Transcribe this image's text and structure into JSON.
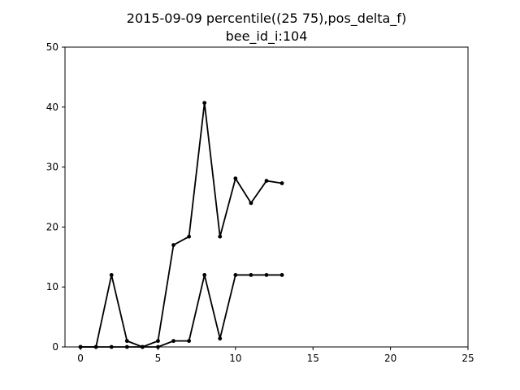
{
  "chart_data": {
    "type": "line",
    "title": "2015-09-09 percentile((25 75),pos_delta_f)",
    "subtitle": "bee_id_i:104",
    "xlabel": "",
    "ylabel": "",
    "xlim": [
      -1,
      25
    ],
    "ylim": [
      0,
      50
    ],
    "xticks": [
      0,
      5,
      10,
      15,
      20,
      25
    ],
    "yticks": [
      0,
      10,
      20,
      30,
      40,
      50
    ],
    "grid": false,
    "legend": false,
    "line_color": "#000000",
    "series": [
      {
        "x": [
          0,
          1,
          2,
          3,
          4,
          5,
          6,
          7,
          8,
          9,
          10,
          11,
          12,
          13
        ],
        "values": [
          0,
          0,
          12,
          1,
          0,
          1,
          17,
          18.4,
          40.7,
          18.4,
          28.1,
          24,
          27.7,
          27.3
        ]
      },
      {
        "x": [
          0,
          1,
          2,
          3,
          4,
          5,
          6,
          7,
          8,
          9,
          10,
          11,
          12,
          13
        ],
        "values": [
          0,
          0,
          0,
          0,
          0,
          0,
          1,
          1,
          12,
          1.4,
          12,
          12,
          12,
          12
        ]
      }
    ]
  }
}
